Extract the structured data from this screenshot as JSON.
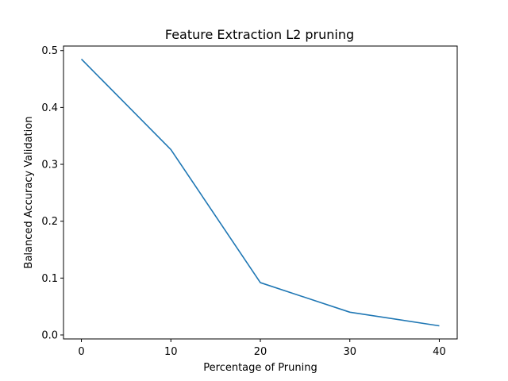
{
  "chart_data": {
    "type": "line",
    "title": "Feature Extraction L2 pruning",
    "xlabel": "Percentage of Pruning",
    "ylabel": "Balanced Accuracy Validation",
    "x": [
      0,
      10,
      20,
      30,
      40
    ],
    "series": [
      {
        "values": [
          0.485,
          0.326,
          0.092,
          0.04,
          0.016
        ],
        "color": "#1f77b4"
      }
    ],
    "xlim": [
      -2,
      42
    ],
    "ylim": [
      -0.007,
      0.508
    ],
    "xticks": [
      0,
      10,
      20,
      30,
      40
    ],
    "yticks": [
      0.0,
      0.1,
      0.2,
      0.3,
      0.4,
      0.5
    ],
    "xtick_labels": [
      "0",
      "10",
      "20",
      "30",
      "40"
    ],
    "ytick_labels": [
      "0.0",
      "0.1",
      "0.2",
      "0.3",
      "0.4",
      "0.5"
    ],
    "grid": false,
    "legend": "none"
  }
}
